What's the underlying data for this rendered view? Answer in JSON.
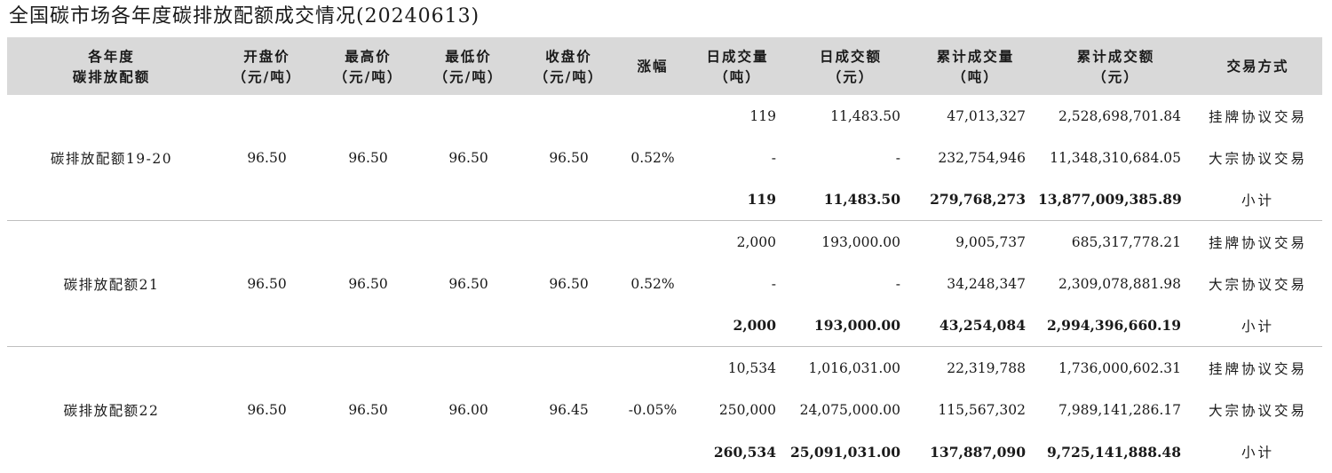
{
  "title": "全国碳市场各年度碳排放配额成交情况(20240613)",
  "headers": [
    {
      "l1": "各年度",
      "l2": "碳排放配额"
    },
    {
      "l1": "开盘价",
      "l2": "（元/吨）"
    },
    {
      "l1": "最高价",
      "l2": "（元/吨）"
    },
    {
      "l1": "最低价",
      "l2": "（元/吨）"
    },
    {
      "l1": "收盘价",
      "l2": "（元/吨）"
    },
    {
      "l1": "涨幅",
      "l2": ""
    },
    {
      "l1": "日成交量",
      "l2": "（吨）"
    },
    {
      "l1": "日成交额",
      "l2": "（元）"
    },
    {
      "l1": "累计成交量",
      "l2": "（吨）"
    },
    {
      "l1": "累计成交额",
      "l2": "（元）"
    },
    {
      "l1": "交易方式",
      "l2": ""
    }
  ],
  "groups": [
    {
      "name": "碳排放配额19-20",
      "open": "96.50",
      "high": "96.50",
      "low": "96.50",
      "close": "96.50",
      "change": "0.52%",
      "rows": [
        {
          "day_vol": "119",
          "day_amt": "11,483.50",
          "cum_vol": "47,013,327",
          "cum_amt": "2,528,698,701.84",
          "mode": "挂牌协议交易"
        },
        {
          "day_vol": "-",
          "day_amt": "-",
          "cum_vol": "232,754,946",
          "cum_amt": "11,348,310,684.05",
          "mode": "大宗协议交易"
        },
        {
          "day_vol": "119",
          "day_amt": "11,483.50",
          "cum_vol": "279,768,273",
          "cum_amt": "13,877,009,385.89",
          "mode": "小计"
        }
      ]
    },
    {
      "name": "碳排放配额21",
      "open": "96.50",
      "high": "96.50",
      "low": "96.50",
      "close": "96.50",
      "change": "0.52%",
      "rows": [
        {
          "day_vol": "2,000",
          "day_amt": "193,000.00",
          "cum_vol": "9,005,737",
          "cum_amt": "685,317,778.21",
          "mode": "挂牌协议交易"
        },
        {
          "day_vol": "-",
          "day_amt": "-",
          "cum_vol": "34,248,347",
          "cum_amt": "2,309,078,881.98",
          "mode": "大宗协议交易"
        },
        {
          "day_vol": "2,000",
          "day_amt": "193,000.00",
          "cum_vol": "43,254,084",
          "cum_amt": "2,994,396,660.19",
          "mode": "小计"
        }
      ]
    },
    {
      "name": "碳排放配额22",
      "open": "96.50",
      "high": "96.50",
      "low": "96.00",
      "close": "96.45",
      "change": "-0.05%",
      "rows": [
        {
          "day_vol": "10,534",
          "day_amt": "1,016,031.00",
          "cum_vol": "22,319,788",
          "cum_amt": "1,736,000,602.31",
          "mode": "挂牌协议交易"
        },
        {
          "day_vol": "250,000",
          "day_amt": "24,075,000.00",
          "cum_vol": "115,567,302",
          "cum_amt": "7,989,141,286.17",
          "mode": "大宗协议交易"
        },
        {
          "day_vol": "260,534",
          "day_amt": "25,091,031.00",
          "cum_vol": "137,887,090",
          "cum_amt": "9,725,141,888.48",
          "mode": "小计"
        }
      ]
    }
  ]
}
